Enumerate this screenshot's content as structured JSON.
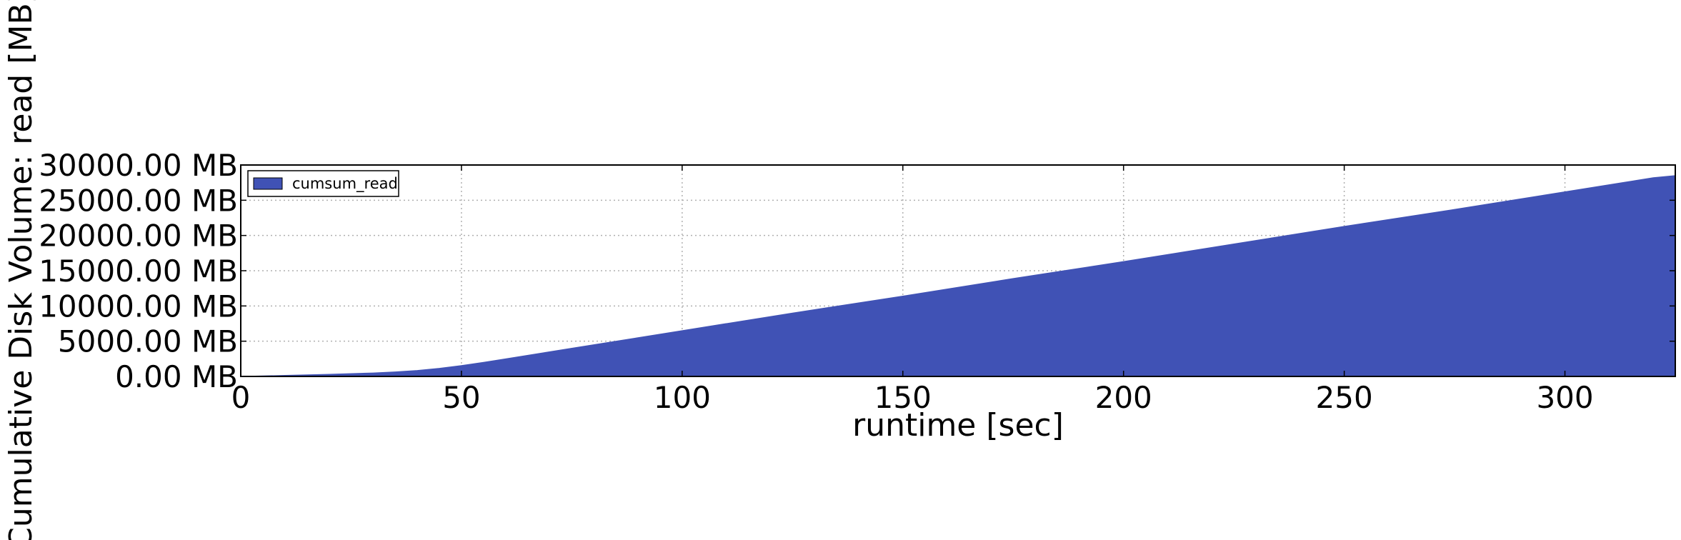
{
  "chart_data": {
    "type": "area",
    "title": "",
    "xlabel": "runtime [sec]",
    "ylabel": "Cumulative Disk Volume: read [MB]",
    "xlim": [
      0,
      325
    ],
    "ylim": [
      0,
      30000
    ],
    "x_ticks": [
      0,
      50,
      100,
      150,
      200,
      250,
      300
    ],
    "y_ticks": [
      0,
      5000,
      10000,
      15000,
      20000,
      25000,
      30000
    ],
    "x_tick_labels": [
      "0",
      "50",
      "100",
      "150",
      "200",
      "250",
      "300"
    ],
    "y_tick_labels": [
      "0.00 MB",
      "5000.00 MB",
      "10000.00 MB",
      "15000.00 MB",
      "20000.00 MB",
      "25000.00 MB",
      "30000.00 MB"
    ],
    "grid": true,
    "legend_position": "top-left",
    "colors": {
      "fill": "#4052b5",
      "frame": "#000000",
      "grid": "#b0b0b0"
    },
    "series": [
      {
        "name": "cumsum_read",
        "x": [
          0,
          10,
          20,
          30,
          35,
          40,
          45,
          50,
          55,
          60,
          75,
          100,
          125,
          150,
          175,
          200,
          225,
          250,
          275,
          300,
          320,
          325
        ],
        "values": [
          0,
          150,
          300,
          500,
          650,
          850,
          1150,
          1550,
          2000,
          2500,
          4000,
          6500,
          9000,
          11400,
          13900,
          16300,
          18800,
          21300,
          23700,
          26200,
          28200,
          28500
        ]
      }
    ]
  }
}
